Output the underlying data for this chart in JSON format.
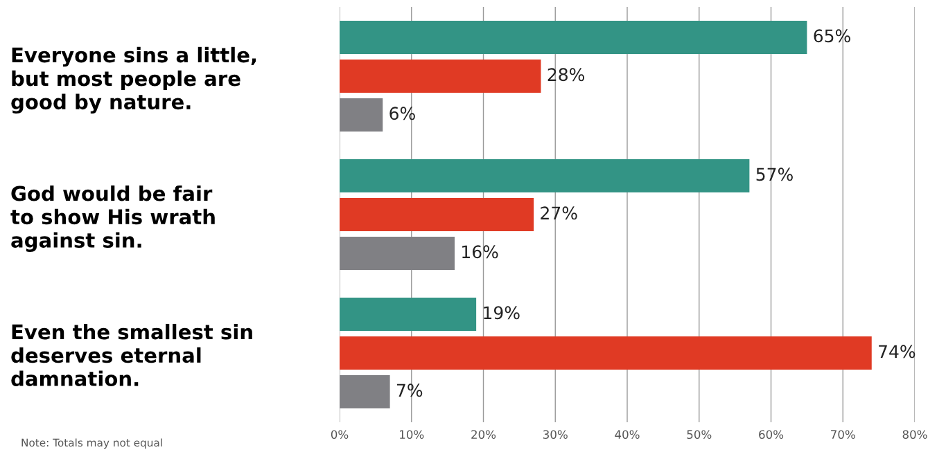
{
  "chart_data": {
    "type": "bar",
    "orientation": "horizontal",
    "categories": [
      "Everyone sins a little,\nbut most people are\ngood by nature.",
      "God would be fair\nto show His wrath\nagainst sin.",
      "Even the smallest sin\ndeserves eternal\ndamnation."
    ],
    "series": [
      {
        "color": "#339485",
        "values": [
          65,
          57,
          19
        ]
      },
      {
        "color": "#e03a24",
        "values": [
          28,
          27,
          74
        ]
      },
      {
        "color": "#808084",
        "values": [
          6,
          16,
          7
        ]
      }
    ],
    "xlim": [
      0,
      80
    ],
    "xticks": [
      {
        "value": 0,
        "label": "0%"
      },
      {
        "value": 10,
        "label": "10%"
      },
      {
        "value": 20,
        "label": "20%"
      },
      {
        "value": 30,
        "label": "30%"
      },
      {
        "value": 40,
        "label": "40%"
      },
      {
        "value": 50,
        "label": "50%"
      },
      {
        "value": 60,
        "label": "60%"
      },
      {
        "value": 70,
        "label": "70%"
      },
      {
        "value": 80,
        "label": "80%"
      }
    ],
    "grid": "x",
    "legend": false,
    "value_labels": [
      [
        "65%",
        "57%",
        "19%"
      ],
      [
        "28%",
        "27%",
        "74%"
      ],
      [
        "6%",
        "16%",
        "7%"
      ]
    ],
    "annotations": [
      "Note: Totals may not equal"
    ]
  }
}
